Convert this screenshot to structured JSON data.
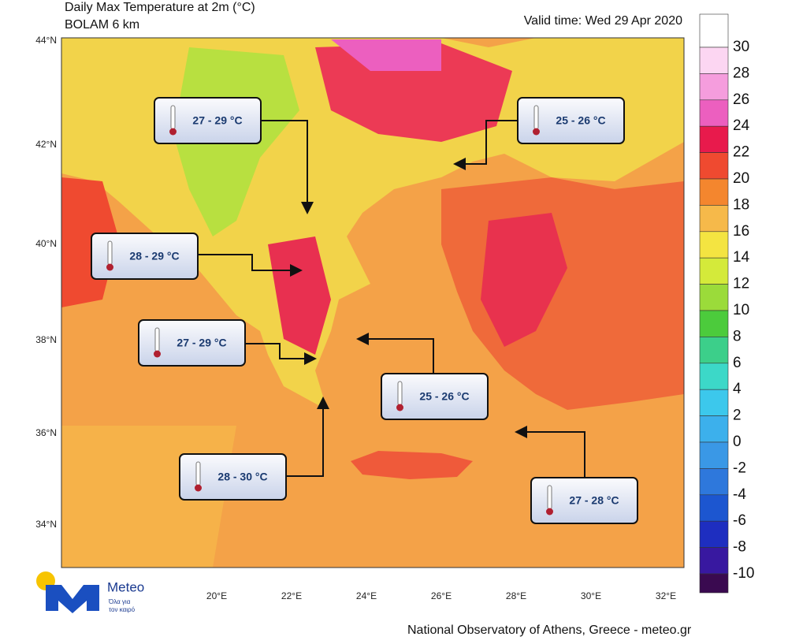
{
  "header": {
    "title": "Daily Max Temperature at 2m (°C)",
    "subtitle": "BOLAM 6 km",
    "valid_time": "Valid time: Wed 29 Apr 2020"
  },
  "map": {
    "lat_labels": [
      "44°N",
      "42°N",
      "40°N",
      "38°N",
      "36°N",
      "34°N"
    ],
    "lon_labels": [
      "20°E",
      "22°E",
      "24°E",
      "26°E",
      "28°E",
      "30°E",
      "32°E"
    ],
    "callouts": [
      "27 - 29 °C",
      "25 - 26 °C",
      "28 - 29 °C",
      "27 - 29 °C",
      "25 - 26 °C",
      "28 - 30 °C",
      "27 - 28 °C"
    ]
  },
  "colorbar": {
    "labels": [
      30,
      28,
      26,
      24,
      22,
      20,
      18,
      16,
      14,
      12,
      10,
      8,
      6,
      4,
      2,
      0,
      -2,
      -4,
      -6,
      -8,
      -10
    ],
    "colors": [
      "#ffffff",
      "#fcd6f2",
      "#f59ddd",
      "#ec5fbf",
      "#e81a4c",
      "#ef4a30",
      "#f4862e",
      "#f6b94a",
      "#f4e441",
      "#d4ea3a",
      "#9bdb3a",
      "#4ccb3c",
      "#3ccf8a",
      "#3cd8c8",
      "#3cc8ec",
      "#3cb0ec",
      "#3a98e6",
      "#2e78dc",
      "#1c56d0",
      "#1e2ec0",
      "#3818a0",
      "#3a0a50"
    ]
  },
  "logo": {
    "name": "Meteo",
    "tagline_1": "Όλα για",
    "tagline_2": "τον καιρό"
  },
  "footer": "National Observatory of Athens, Greece - meteo.gr"
}
